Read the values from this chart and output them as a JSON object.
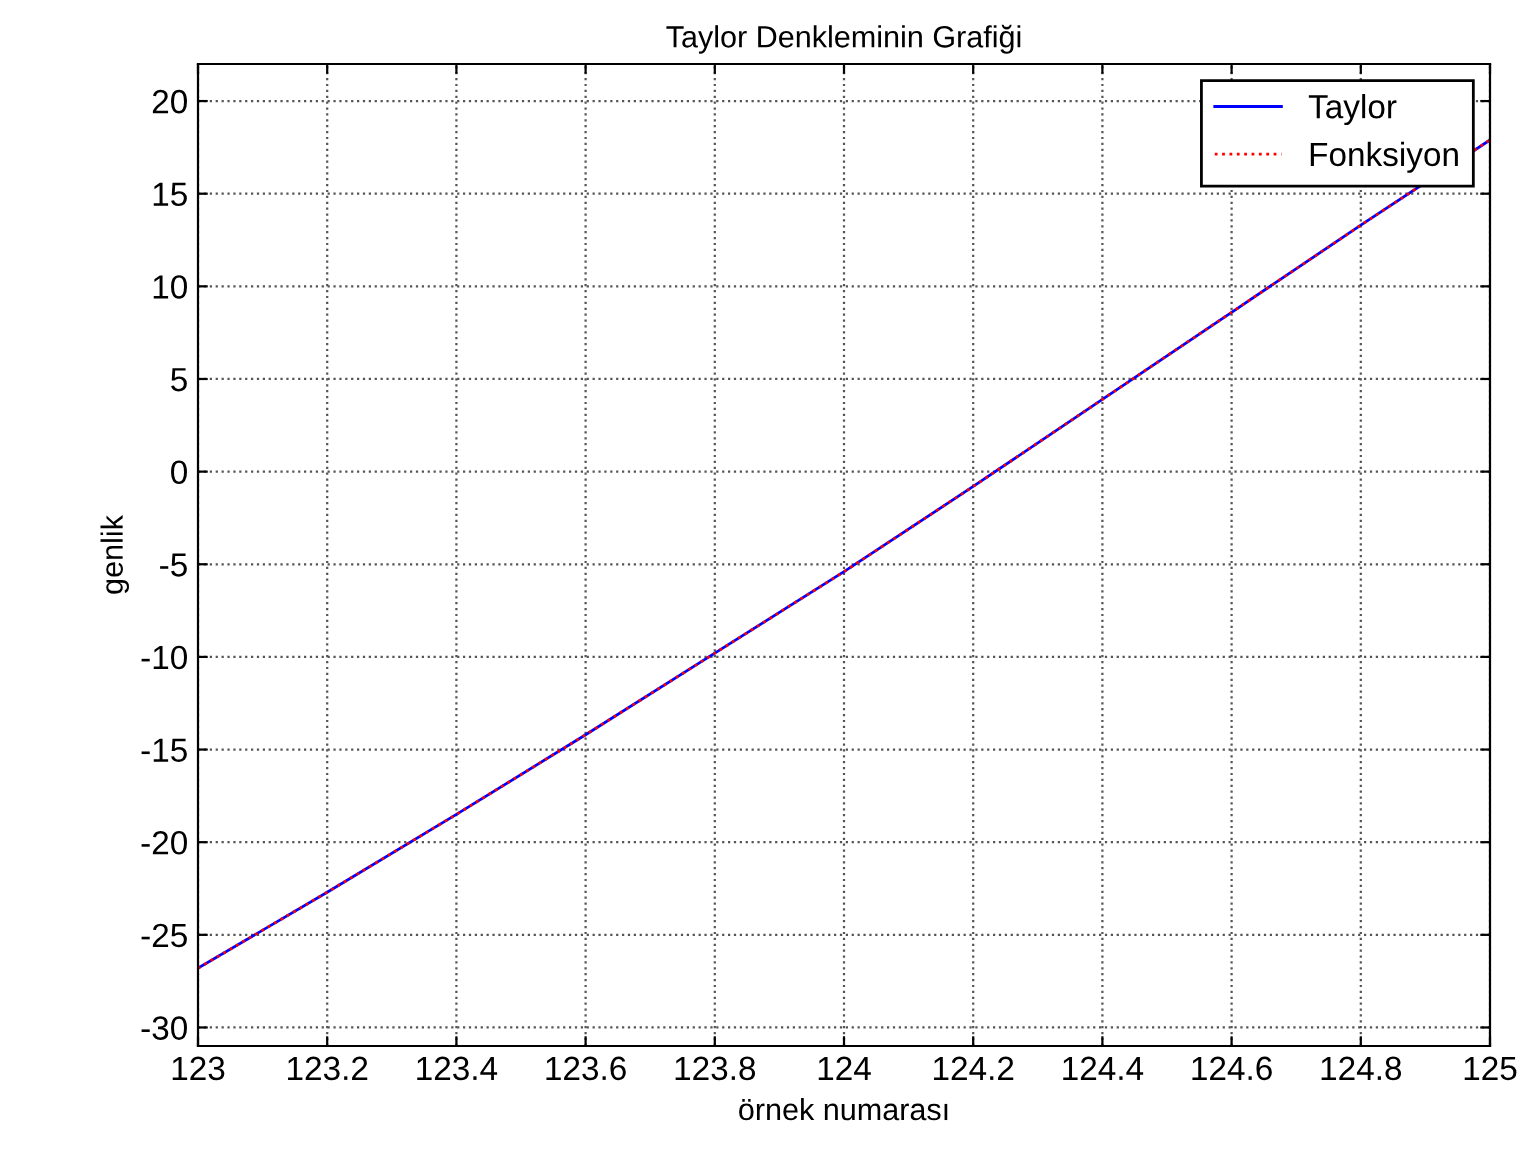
{
  "chart_data": {
    "type": "line",
    "title": "Taylor Denkleminin Grafiği",
    "xlabel": "örnek numarası",
    "ylabel": "genlik",
    "x": [
      123,
      123.2,
      123.4,
      123.6,
      123.8,
      124,
      124.2,
      124.4,
      124.6,
      124.8,
      125
    ],
    "series": [
      {
        "name": "Taylor",
        "color": "#0000ff",
        "line_style": "solid",
        "values": [
          -26.8,
          -22.7,
          -18.5,
          -14.2,
          -9.8,
          -5.4,
          -0.8,
          3.9,
          8.6,
          13.3,
          17.9
        ]
      },
      {
        "name": "Fonksiyon",
        "color": "#ff0000",
        "line_style": "dotted",
        "values": [
          -26.8,
          -22.7,
          -18.5,
          -14.2,
          -9.8,
          -5.4,
          -0.8,
          3.9,
          8.6,
          13.3,
          17.9
        ]
      }
    ],
    "xlim": [
      123,
      125
    ],
    "xticks": [
      123,
      123.2,
      123.4,
      123.6,
      123.8,
      124,
      124.2,
      124.4,
      124.6,
      124.8,
      125
    ],
    "ylim": [
      -31,
      22
    ],
    "yticks": [
      -30,
      -25,
      -20,
      -15,
      -10,
      -5,
      0,
      5,
      10,
      15,
      20
    ],
    "grid": true,
    "legend": "top right",
    "marker": "none"
  }
}
